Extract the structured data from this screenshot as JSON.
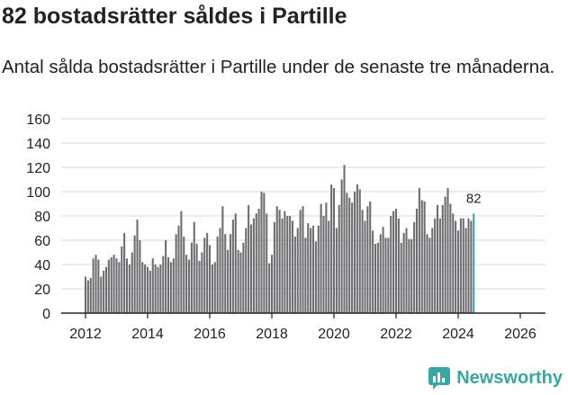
{
  "chart_data": {
    "type": "bar",
    "title": "82 bostadsrätter såldes i Partille",
    "subtitle": "Antal sålda bostadsrätter i Partille under de senaste tre månaderna.",
    "xlabel": "",
    "ylabel": "",
    "ylim": [
      0,
      160
    ],
    "yticks": [
      "0",
      "20",
      "40",
      "60",
      "80",
      "100",
      "120",
      "140",
      "160"
    ],
    "xticks": [
      "2012",
      "2014",
      "2016",
      "2018",
      "2020",
      "2022",
      "2024",
      "2026"
    ],
    "start_year": 2012,
    "start_month": 0,
    "grid": true,
    "bar_color": "#6d6c71",
    "highlight_color": "#3aa6a0",
    "last_value_label": "82",
    "values": [
      30,
      27,
      29,
      45,
      48,
      44,
      30,
      35,
      38,
      44,
      46,
      48,
      45,
      42,
      55,
      66,
      45,
      40,
      50,
      64,
      77,
      60,
      42,
      40,
      38,
      35,
      45,
      40,
      38,
      40,
      47,
      60,
      46,
      42,
      45,
      65,
      72,
      84,
      63,
      48,
      44,
      58,
      75,
      57,
      43,
      50,
      62,
      66,
      56,
      40,
      42,
      63,
      70,
      88,
      65,
      52,
      65,
      77,
      82,
      52,
      50,
      58,
      70,
      89,
      73,
      78,
      82,
      86,
      100,
      99,
      82,
      41,
      48,
      75,
      88,
      85,
      78,
      84,
      80,
      80,
      76,
      63,
      70,
      85,
      88,
      62,
      74,
      70,
      72,
      59,
      72,
      90,
      80,
      91,
      76,
      106,
      103,
      70,
      89,
      110,
      122,
      99,
      95,
      91,
      100,
      106,
      102,
      85,
      76,
      88,
      92,
      68,
      57,
      58,
      65,
      71,
      62,
      62,
      80,
      84,
      86,
      78,
      58,
      66,
      70,
      61,
      61,
      75,
      86,
      103,
      93,
      92,
      65,
      62,
      70,
      78,
      89,
      78,
      89,
      96,
      103,
      90,
      82,
      76,
      68,
      78,
      78,
      70,
      78,
      76,
      82
    ]
  },
  "brand": {
    "name": "Newsworthy",
    "icon": "newsworthy-logo-icon"
  }
}
